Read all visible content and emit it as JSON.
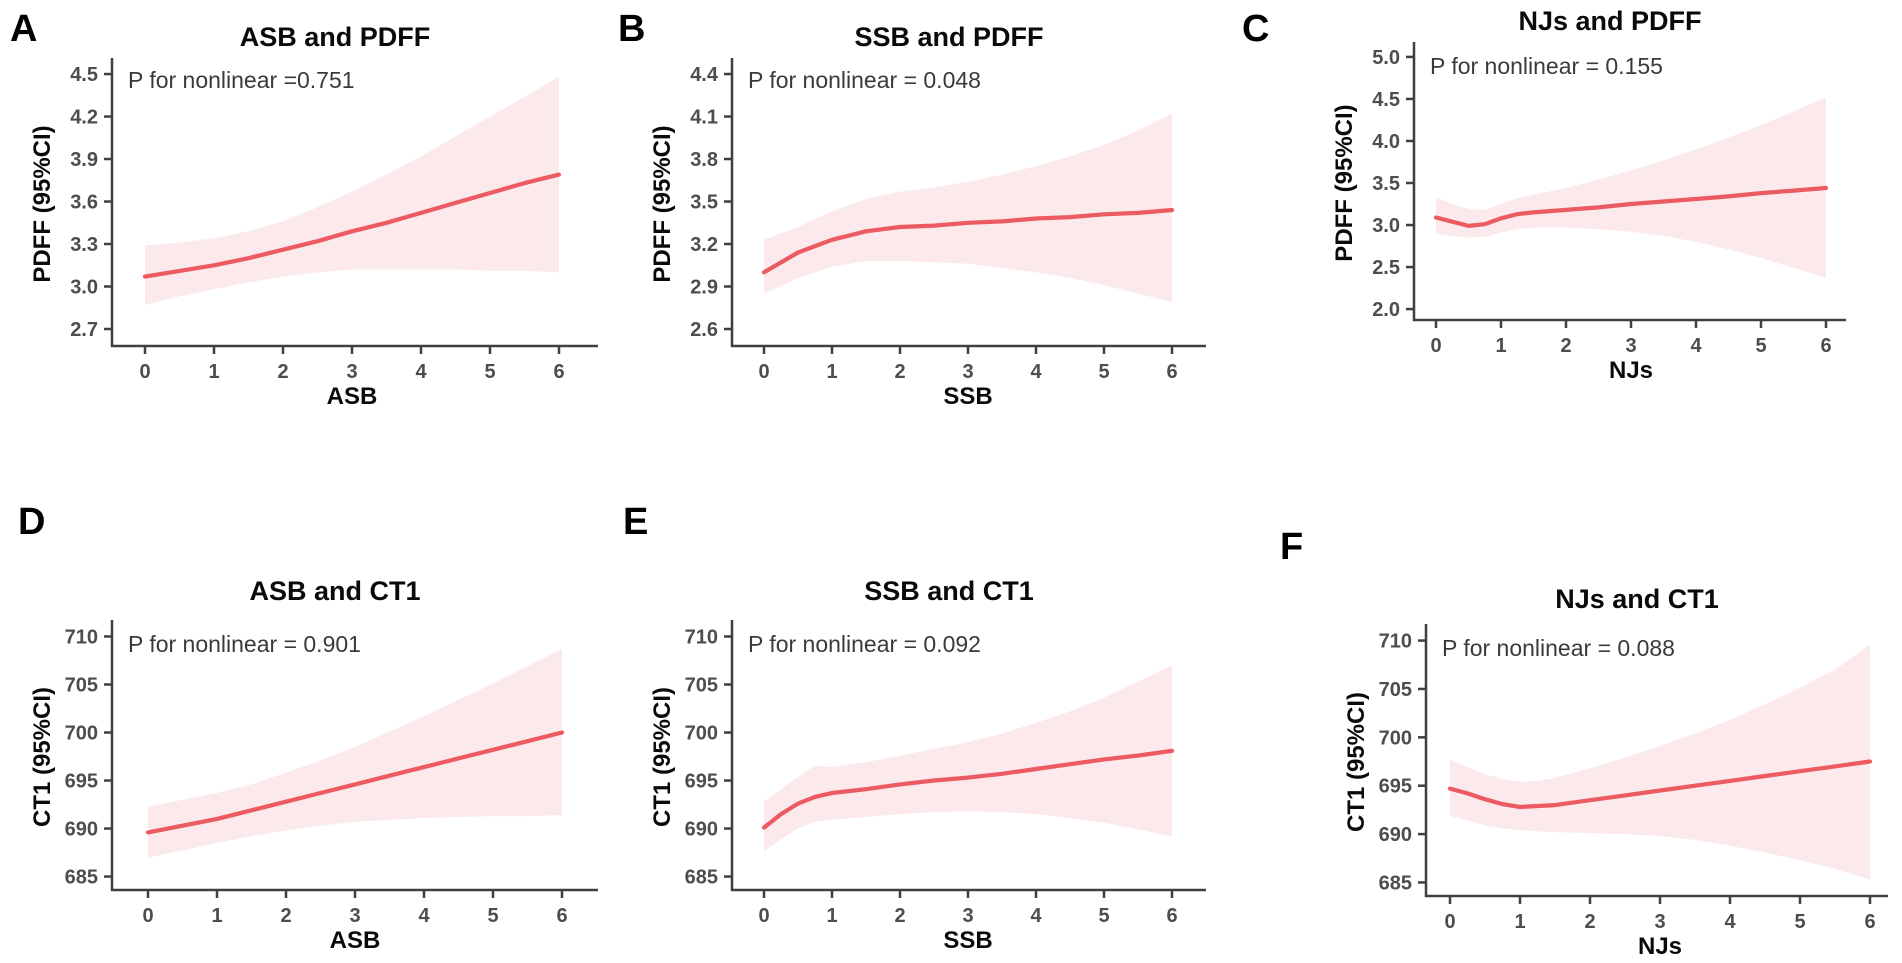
{
  "figure": {
    "background": "#FFFFFF",
    "description": "Six-panel restricted cubic spline figure: associations of beverages (ASB, SSB, NJs) with PDFF and CT1"
  },
  "colors": {
    "line": "#EC5A62",
    "band": "#FBE9EC",
    "axis": "#3F3F3F",
    "tick_label": "#4D4D4D",
    "title_text": "#0A0A0A",
    "p_text": "#3A3A3A",
    "background": "#FFFFFF"
  },
  "chart_data": [
    {
      "panel_label": "A",
      "type": "line",
      "title": "ASB and PDFF",
      "p_annotation": "P for nonlinear =0.751",
      "xlabel": "ASB",
      "ylabel": "PDFF (95%CI)",
      "xlim": [
        0,
        6
      ],
      "ylim": [
        2.58,
        4.585
      ],
      "x_ticks": [
        0,
        1,
        2,
        3,
        4,
        5,
        6
      ],
      "y_ticks": [
        2.7,
        3.0,
        3.3,
        3.6,
        3.9,
        4.2,
        4.5
      ],
      "y_tick_labels": [
        "2.7",
        "3.0",
        "3.3",
        "3.6",
        "3.9",
        "4.2",
        "4.5"
      ],
      "x": [
        0,
        0.5,
        1,
        1.5,
        2,
        2.5,
        3,
        3.5,
        4,
        4.5,
        5,
        5.5,
        6
      ],
      "mean": [
        3.07,
        3.11,
        3.15,
        3.2,
        3.26,
        3.32,
        3.39,
        3.45,
        3.52,
        3.59,
        3.66,
        3.73,
        3.79
      ],
      "lower": [
        2.87,
        2.93,
        2.98,
        3.03,
        3.07,
        3.1,
        3.12,
        3.12,
        3.12,
        3.12,
        3.11,
        3.11,
        3.1
      ],
      "upper": [
        3.29,
        3.31,
        3.34,
        3.39,
        3.46,
        3.56,
        3.67,
        3.79,
        3.92,
        4.06,
        4.2,
        4.34,
        4.48
      ],
      "band_meaning": "95% CI"
    },
    {
      "panel_label": "B",
      "type": "line",
      "title": "SSB and PDFF",
      "p_annotation": "P for nonlinear = 0.048",
      "xlabel": "SSB",
      "ylabel": "PDFF (95%CI)",
      "xlim": [
        0,
        6
      ],
      "ylim": [
        2.48,
        4.485
      ],
      "x_ticks": [
        0,
        1,
        2,
        3,
        4,
        5,
        6
      ],
      "y_ticks": [
        2.6,
        2.9,
        3.2,
        3.5,
        3.8,
        4.1,
        4.4
      ],
      "y_tick_labels": [
        "2.6",
        "2.9",
        "3.2",
        "3.5",
        "3.8",
        "4.1",
        "4.4"
      ],
      "x": [
        0,
        0.5,
        1,
        1.5,
        2,
        2.5,
        3,
        3.5,
        4,
        4.5,
        5,
        5.5,
        6
      ],
      "mean": [
        3.0,
        3.14,
        3.23,
        3.29,
        3.32,
        3.33,
        3.35,
        3.36,
        3.38,
        3.39,
        3.41,
        3.42,
        3.44
      ],
      "lower": [
        2.85,
        2.96,
        3.04,
        3.08,
        3.08,
        3.07,
        3.06,
        3.03,
        3.0,
        2.96,
        2.91,
        2.85,
        2.79
      ],
      "upper": [
        3.23,
        3.32,
        3.43,
        3.52,
        3.57,
        3.6,
        3.64,
        3.69,
        3.75,
        3.82,
        3.9,
        4.0,
        4.12
      ],
      "band_meaning": "95% CI"
    },
    {
      "panel_label": "C",
      "type": "line",
      "title": "NJs and PDFF",
      "p_annotation": "P for nonlinear = 0.155",
      "xlabel": "NJs",
      "ylabel": "PDFF (95%CI)",
      "xlim": [
        0,
        6
      ],
      "ylim": [
        1.87,
        5.13
      ],
      "x_ticks": [
        0,
        1,
        2,
        3,
        4,
        5,
        6
      ],
      "y_ticks": [
        2.0,
        2.5,
        3.0,
        3.5,
        4.0,
        4.5,
        5.0
      ],
      "y_tick_labels": [
        "2.0",
        "2.5",
        "3.0",
        "3.5",
        "4.0",
        "4.5",
        "5.0"
      ],
      "x": [
        0,
        0.25,
        0.5,
        0.75,
        1,
        1.25,
        1.5,
        2,
        2.5,
        3,
        3.5,
        4,
        4.5,
        5,
        5.5,
        6
      ],
      "mean": [
        3.09,
        3.04,
        2.99,
        3.01,
        3.08,
        3.13,
        3.15,
        3.18,
        3.21,
        3.25,
        3.28,
        3.31,
        3.34,
        3.38,
        3.41,
        3.44
      ],
      "lower": [
        2.9,
        2.87,
        2.85,
        2.86,
        2.91,
        2.95,
        2.97,
        2.97,
        2.95,
        2.92,
        2.87,
        2.8,
        2.71,
        2.61,
        2.49,
        2.37
      ],
      "upper": [
        3.33,
        3.25,
        3.19,
        3.18,
        3.25,
        3.32,
        3.36,
        3.44,
        3.54,
        3.65,
        3.77,
        3.9,
        4.04,
        4.19,
        4.35,
        4.52
      ],
      "band_meaning": "95% CI"
    },
    {
      "panel_label": "D",
      "type": "line",
      "title": "ASB and CT1",
      "p_annotation": "P for nonlinear = 0.901",
      "xlabel": "ASB",
      "ylabel": "CT1 (95%CI)",
      "xlim": [
        0,
        6
      ],
      "ylim": [
        683.6,
        711.3
      ],
      "x_ticks": [
        0,
        1,
        2,
        3,
        4,
        5,
        6
      ],
      "y_ticks": [
        685,
        690,
        695,
        700,
        705,
        710
      ],
      "y_tick_labels": [
        "685",
        "690",
        "695",
        "700",
        "705",
        "710"
      ],
      "x": [
        0,
        0.5,
        1,
        1.5,
        2,
        2.5,
        3,
        3.5,
        4,
        4.5,
        5,
        5.5,
        6
      ],
      "mean": [
        689.6,
        690.3,
        691.0,
        691.9,
        692.8,
        693.7,
        694.6,
        695.5,
        696.4,
        697.3,
        698.2,
        699.1,
        700.0
      ],
      "lower": [
        687.0,
        687.7,
        688.5,
        689.2,
        689.8,
        690.3,
        690.7,
        690.9,
        691.1,
        691.2,
        691.3,
        691.3,
        691.4
      ],
      "upper": [
        692.3,
        693.0,
        693.7,
        694.6,
        695.8,
        697.1,
        698.5,
        700.1,
        701.7,
        703.4,
        705.1,
        706.9,
        708.7
      ],
      "band_meaning": "95% CI"
    },
    {
      "panel_label": "E",
      "type": "line",
      "title": "SSB and CT1",
      "p_annotation": "P for nonlinear = 0.092",
      "xlabel": "SSB",
      "ylabel": "CT1 (95%CI)",
      "xlim": [
        0,
        6
      ],
      "ylim": [
        683.6,
        711.3
      ],
      "x_ticks": [
        0,
        1,
        2,
        3,
        4,
        5,
        6
      ],
      "y_ticks": [
        685,
        690,
        695,
        700,
        705,
        710
      ],
      "y_tick_labels": [
        "685",
        "690",
        "695",
        "700",
        "705",
        "710"
      ],
      "x": [
        0,
        0.25,
        0.5,
        0.75,
        1,
        1.5,
        2,
        2.5,
        3,
        3.5,
        4,
        4.5,
        5,
        5.5,
        6
      ],
      "mean": [
        690.1,
        691.5,
        692.6,
        693.3,
        693.7,
        694.1,
        694.6,
        695.0,
        695.3,
        695.7,
        696.2,
        696.7,
        697.2,
        697.6,
        698.1
      ],
      "lower": [
        687.6,
        688.9,
        690.0,
        690.7,
        690.9,
        691.2,
        691.5,
        691.7,
        691.8,
        691.7,
        691.5,
        691.1,
        690.6,
        689.9,
        689.2
      ],
      "upper": [
        692.8,
        694.1,
        695.4,
        696.6,
        696.4,
        696.9,
        697.6,
        698.3,
        699.0,
        699.9,
        701.0,
        702.2,
        703.6,
        705.3,
        707.0
      ],
      "band_meaning": "95% CI"
    },
    {
      "panel_label": "F",
      "type": "line",
      "title": "NJs and CT1",
      "p_annotation": "P for nonlinear = 0.088",
      "xlabel": "NJs",
      "ylabel": "CT1 (95%CI)",
      "xlim": [
        0,
        6
      ],
      "ylim": [
        683.6,
        711.3
      ],
      "x_ticks": [
        0,
        1,
        2,
        3,
        4,
        5,
        6
      ],
      "y_ticks": [
        685,
        690,
        695,
        700,
        705,
        710
      ],
      "y_tick_labels": [
        "685",
        "690",
        "695",
        "700",
        "705",
        "710"
      ],
      "x": [
        0,
        0.25,
        0.5,
        0.75,
        1,
        1.25,
        1.5,
        2,
        2.5,
        3,
        3.5,
        4,
        4.5,
        5,
        5.5,
        6
      ],
      "mean": [
        694.7,
        694.2,
        693.6,
        693.1,
        692.8,
        692.9,
        693.0,
        693.5,
        694.0,
        694.5,
        695.0,
        695.5,
        696.0,
        696.5,
        697.0,
        697.5
      ],
      "lower": [
        691.9,
        691.4,
        690.9,
        690.6,
        690.4,
        690.3,
        690.2,
        690.1,
        690.0,
        689.8,
        689.4,
        688.8,
        688.1,
        687.3,
        686.4,
        685.3
      ],
      "upper": [
        697.7,
        696.9,
        696.2,
        695.7,
        695.4,
        695.5,
        695.8,
        696.8,
        697.9,
        699.1,
        700.4,
        701.8,
        703.4,
        705.1,
        707.0,
        709.6
      ],
      "band_meaning": "95% CI"
    }
  ]
}
